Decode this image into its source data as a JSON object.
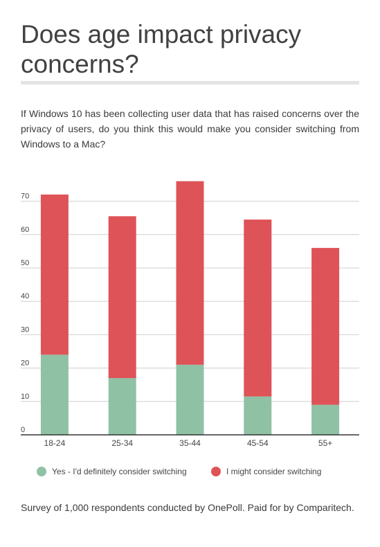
{
  "header": {
    "title": "Does age impact privacy concerns?",
    "question": "If Windows 10 has been collecting user data that has raised concerns over the privacy of users, do you think this would make you consider switching from Windows to a Mac?"
  },
  "footer": {
    "note": "Survey of 1,000 respondents conducted by OnePoll. Paid for by Comparitech."
  },
  "chart_data": {
    "type": "bar",
    "stacked": true,
    "categories": [
      "18-24",
      "25-34",
      "35-44",
      "45-54",
      "55+"
    ],
    "series": [
      {
        "name": "Yes - I'd definitely consider switching",
        "color": "#8fc1a5",
        "values": [
          24,
          17,
          21,
          11.5,
          9
        ]
      },
      {
        "name": "I might consider switching",
        "color": "#de5357",
        "values": [
          48,
          48.5,
          55,
          53,
          47
        ]
      }
    ],
    "yticks": [
      0,
      10,
      20,
      30,
      40,
      50,
      60,
      70
    ],
    "ylim": [
      0,
      80
    ],
    "grid": true,
    "legend_position": "bottom"
  }
}
